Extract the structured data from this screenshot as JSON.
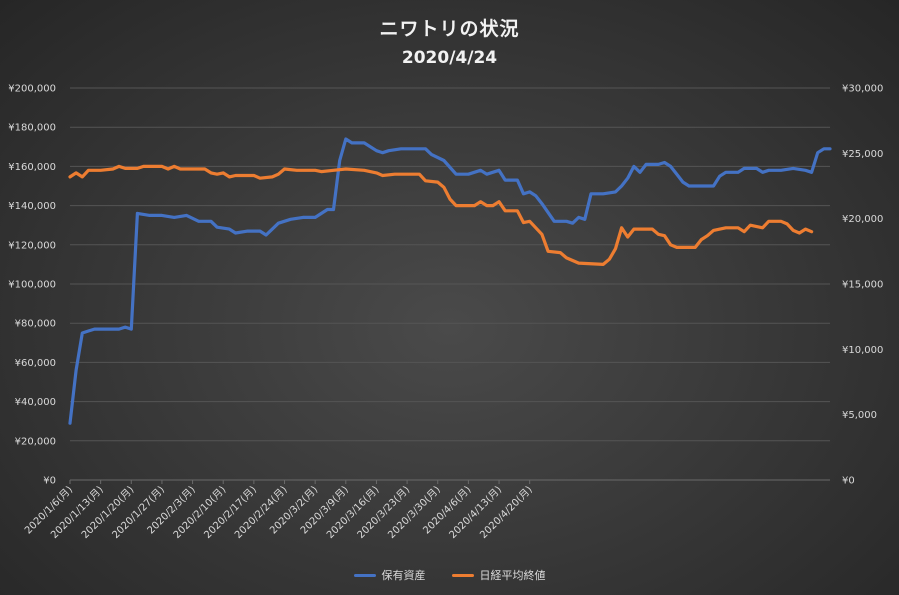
{
  "chart_data": {
    "type": "line",
    "title": "ニワトリの状況",
    "subtitle": "2020/4/24",
    "x_tick_labels": [
      "2020/1/6(月)",
      "2020/1/13(月)",
      "2020/1/20(月)",
      "2020/1/27(月)",
      "2020/2/3(月)",
      "2020/2/10(月)",
      "2020/2/17(月)",
      "2020/2/24(月)",
      "2020/3/2(月)",
      "2020/3/9(月)",
      "2020/3/16(月)",
      "2020/3/23(月)",
      "2020/3/30(月)",
      "2020/4/6(月)",
      "2020/4/13(月)",
      "2020/4/20(月)"
    ],
    "y_left": {
      "min": 0,
      "max": 200000,
      "tick_labels": [
        "¥0",
        "¥20,000",
        "¥40,000",
        "¥60,000",
        "¥80,000",
        "¥100,000",
        "¥120,000",
        "¥140,000",
        "¥160,000",
        "¥180,000",
        "¥200,000"
      ]
    },
    "y_right": {
      "min": 0,
      "max": 30000,
      "tick_labels": [
        "¥0",
        "¥5,000",
        "¥10,000",
        "¥15,000",
        "¥20,000",
        "¥25,000",
        "¥30,000"
      ]
    },
    "gridlines": true,
    "legend_position": "bottom",
    "series": [
      {
        "name": "保有資産",
        "axis": "left",
        "color": "#4472C4",
        "values": [
          [
            0,
            29000
          ],
          [
            1,
            56000
          ],
          [
            2,
            75000
          ],
          [
            3,
            76000
          ],
          [
            4,
            77000
          ],
          [
            5,
            77000
          ],
          [
            6,
            77000
          ],
          [
            7,
            77000
          ],
          [
            8,
            77000
          ],
          [
            9,
            78000
          ],
          [
            10,
            77000
          ],
          [
            11,
            136000
          ],
          [
            13,
            135000
          ],
          [
            15,
            135000
          ],
          [
            17,
            134000
          ],
          [
            19,
            135000
          ],
          [
            21,
            132000
          ],
          [
            23,
            132000
          ],
          [
            24,
            129000
          ],
          [
            26,
            128000
          ],
          [
            27,
            126000
          ],
          [
            29,
            127000
          ],
          [
            31,
            127000
          ],
          [
            32,
            125000
          ],
          [
            34,
            131000
          ],
          [
            36,
            133000
          ],
          [
            38,
            134000
          ],
          [
            40,
            134000
          ],
          [
            42,
            138000
          ],
          [
            43,
            138000
          ],
          [
            44,
            163000
          ],
          [
            45,
            174000
          ],
          [
            46,
            172000
          ],
          [
            48,
            172000
          ],
          [
            50,
            168000
          ],
          [
            51,
            167000
          ],
          [
            52,
            168000
          ],
          [
            54,
            169000
          ],
          [
            56,
            169000
          ],
          [
            58,
            169000
          ],
          [
            59,
            166000
          ],
          [
            61,
            163000
          ],
          [
            63,
            156000
          ],
          [
            65,
            156000
          ],
          [
            67,
            158000
          ],
          [
            68,
            156000
          ],
          [
            70,
            158000
          ],
          [
            71,
            153000
          ],
          [
            73,
            153000
          ],
          [
            74,
            146000
          ],
          [
            75,
            147000
          ],
          [
            76,
            145000
          ],
          [
            77,
            141000
          ],
          [
            79,
            132000
          ],
          [
            81,
            132000
          ],
          [
            82,
            131000
          ],
          [
            83,
            134000
          ],
          [
            84,
            133000
          ],
          [
            85,
            146000
          ],
          [
            87,
            146000
          ],
          [
            89,
            147000
          ],
          [
            90,
            150000
          ],
          [
            91,
            154000
          ],
          [
            92,
            160000
          ],
          [
            93,
            157000
          ],
          [
            94,
            161000
          ],
          [
            96,
            161000
          ],
          [
            97,
            162000
          ],
          [
            98,
            160000
          ],
          [
            99,
            156000
          ],
          [
            100,
            152000
          ],
          [
            101,
            150000
          ],
          [
            103,
            150000
          ],
          [
            105,
            150000
          ],
          [
            106,
            155000
          ],
          [
            107,
            157000
          ],
          [
            109,
            157000
          ],
          [
            110,
            159000
          ],
          [
            112,
            159000
          ],
          [
            113,
            157000
          ],
          [
            114,
            158000
          ],
          [
            116,
            158000
          ],
          [
            118,
            159000
          ],
          [
            120,
            158000
          ],
          [
            121,
            157000
          ],
          [
            122,
            167000
          ],
          [
            123,
            169000
          ],
          [
            124,
            169000
          ]
        ]
      },
      {
        "name": "日経平均終値",
        "axis": "right",
        "color": "#ED7D31",
        "values": [
          [
            0,
            23200
          ],
          [
            1,
            23500
          ],
          [
            2,
            23200
          ],
          [
            3,
            23700
          ],
          [
            5,
            23700
          ],
          [
            7,
            23800
          ],
          [
            8,
            24000
          ],
          [
            9,
            23850
          ],
          [
            11,
            23850
          ],
          [
            12,
            24000
          ],
          [
            15,
            24000
          ],
          [
            16,
            23800
          ],
          [
            17,
            24000
          ],
          [
            18,
            23800
          ],
          [
            22,
            23800
          ],
          [
            23,
            23500
          ],
          [
            24,
            23400
          ],
          [
            25,
            23500
          ],
          [
            26,
            23200
          ],
          [
            27,
            23300
          ],
          [
            30,
            23300
          ],
          [
            31,
            23100
          ],
          [
            33,
            23200
          ],
          [
            34,
            23400
          ],
          [
            35,
            23800
          ],
          [
            37,
            23700
          ],
          [
            40,
            23700
          ],
          [
            41,
            23600
          ],
          [
            43,
            23700
          ],
          [
            45,
            23800
          ],
          [
            48,
            23700
          ],
          [
            50,
            23500
          ],
          [
            51,
            23300
          ],
          [
            53,
            23400
          ],
          [
            55,
            23400
          ],
          [
            57,
            23400
          ],
          [
            58,
            22900
          ],
          [
            60,
            22800
          ],
          [
            61,
            22400
          ],
          [
            62,
            21500
          ],
          [
            63,
            21000
          ],
          [
            66,
            21000
          ],
          [
            67,
            21300
          ],
          [
            68,
            21000
          ],
          [
            69,
            21000
          ],
          [
            70,
            21300
          ],
          [
            71,
            20600
          ],
          [
            73,
            20600
          ],
          [
            74,
            19700
          ],
          [
            75,
            19800
          ],
          [
            76,
            19300
          ],
          [
            77,
            18800
          ],
          [
            78,
            17500
          ],
          [
            80,
            17400
          ],
          [
            81,
            17000
          ],
          [
            82,
            16800
          ],
          [
            83,
            16600
          ],
          [
            87,
            16500
          ],
          [
            88,
            16900
          ],
          [
            89,
            17700
          ],
          [
            90,
            19300
          ],
          [
            91,
            18600
          ],
          [
            92,
            19200
          ],
          [
            95,
            19200
          ],
          [
            96,
            18800
          ],
          [
            97,
            18700
          ],
          [
            98,
            18000
          ],
          [
            99,
            17800
          ],
          [
            102,
            17800
          ],
          [
            103,
            18400
          ],
          [
            104,
            18700
          ],
          [
            105,
            19100
          ],
          [
            107,
            19300
          ],
          [
            109,
            19300
          ],
          [
            110,
            19000
          ],
          [
            111,
            19500
          ],
          [
            113,
            19300
          ],
          [
            114,
            19800
          ],
          [
            116,
            19800
          ],
          [
            117,
            19600
          ],
          [
            118,
            19100
          ],
          [
            119,
            18900
          ],
          [
            120,
            19200
          ],
          [
            121,
            19000
          ]
        ]
      }
    ]
  },
  "legend": {
    "series1_label": "保有資産",
    "series2_label": "日経平均終値"
  }
}
